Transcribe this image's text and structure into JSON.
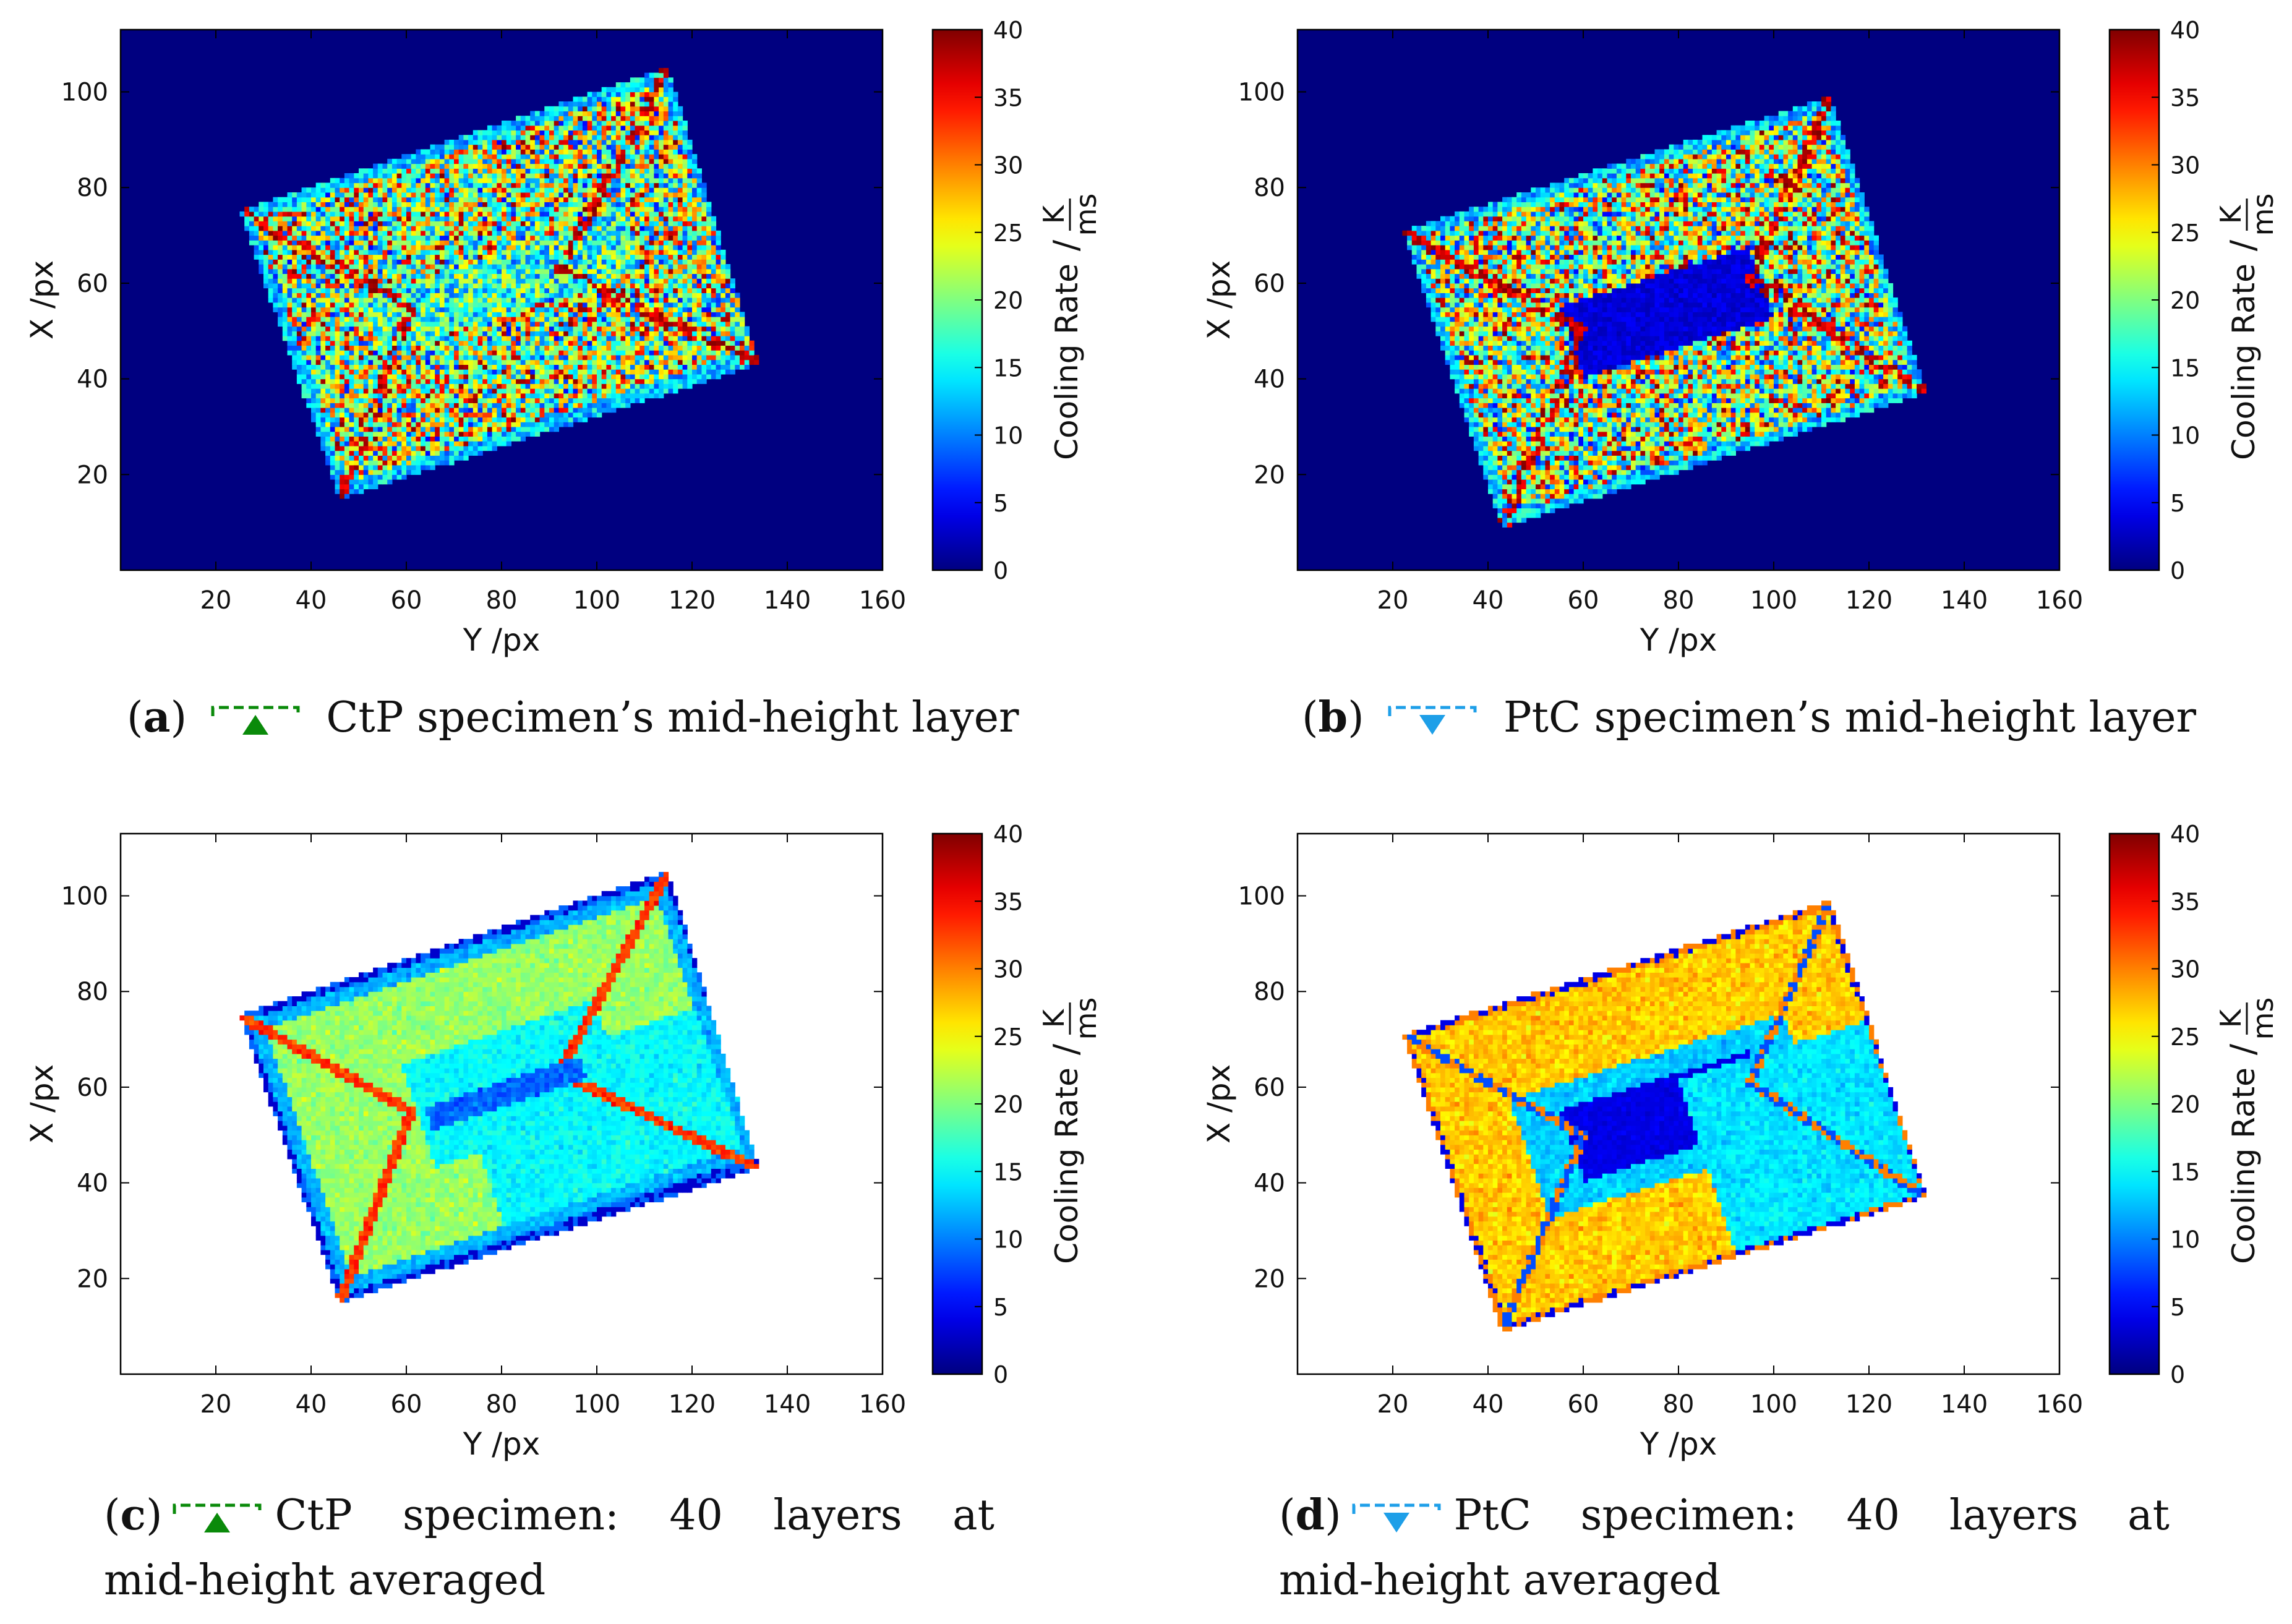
{
  "colors": {
    "ctp_marker": "#0a8a0a",
    "ptc_marker": "#1e9fe8",
    "background_blue": "#00007f"
  },
  "chart_data": [
    {
      "id": "a",
      "type": "heatmap",
      "title": "",
      "xlabel": "Y /px",
      "ylabel": "X /px",
      "xlim": [
        0,
        160
      ],
      "ylim": [
        0,
        113
      ],
      "xticks": [
        20,
        40,
        60,
        80,
        100,
        120,
        140,
        160
      ],
      "yticks": [
        20,
        40,
        60,
        80,
        100
      ],
      "background": "value_0",
      "specimen_corners": [
        [
          25,
          75
        ],
        [
          115,
          105
        ],
        [
          134,
          43
        ],
        [
          46,
          15
        ]
      ],
      "pattern": "noisy single layer, scattered 5-40 K/ms, low-rate central band",
      "colorbar": {
        "label": "Cooling Rate",
        "unit_num": "K",
        "unit_den": "ms",
        "unit_sep": "/",
        "min": 0,
        "max": 40,
        "ticks": [
          0,
          5,
          10,
          15,
          20,
          25,
          30,
          35,
          40
        ]
      }
    },
    {
      "id": "b",
      "type": "heatmap",
      "title": "",
      "xlabel": "Y /px",
      "ylabel": "X /px",
      "xlim": [
        0,
        160
      ],
      "ylim": [
        0,
        113
      ],
      "xticks": [
        20,
        40,
        60,
        80,
        100,
        120,
        140,
        160
      ],
      "yticks": [
        20,
        40,
        60,
        80,
        100
      ],
      "background": "value_0",
      "specimen_corners": [
        [
          22,
          71
        ],
        [
          112,
          99
        ],
        [
          132,
          37
        ],
        [
          43,
          9
        ]
      ],
      "pattern": "noisy single layer, scattered 5-40 K/ms, dark-blue central rectangle",
      "colorbar": {
        "label": "Cooling Rate",
        "unit_num": "K",
        "unit_den": "ms",
        "unit_sep": "/",
        "min": 0,
        "max": 40,
        "ticks": [
          0,
          5,
          10,
          15,
          20,
          25,
          30,
          35,
          40
        ]
      }
    },
    {
      "id": "c",
      "type": "heatmap",
      "title": "",
      "xlabel": "Y /px",
      "ylabel": "X /px",
      "xlim": [
        0,
        160
      ],
      "ylim": [
        0,
        113
      ],
      "xticks": [
        20,
        40,
        60,
        80,
        100,
        120,
        140,
        160
      ],
      "yticks": [
        20,
        40,
        60,
        80,
        100
      ],
      "background": "white",
      "specimen_corners": [
        [
          25,
          75
        ],
        [
          115,
          105
        ],
        [
          134,
          43
        ],
        [
          46,
          15
        ]
      ],
      "pattern": "40-layer average, ~20-25 K/ms field, ~10-15 K/ms border, red diagonal ridges",
      "colorbar": {
        "label": "Cooling Rate",
        "unit_num": "K",
        "unit_den": "ms",
        "unit_sep": "/",
        "min": 0,
        "max": 40,
        "ticks": [
          0,
          5,
          10,
          15,
          20,
          25,
          30,
          35,
          40
        ]
      }
    },
    {
      "id": "d",
      "type": "heatmap",
      "title": "",
      "xlabel": "Y /px",
      "ylabel": "X /px",
      "xlim": [
        0,
        160
      ],
      "ylim": [
        0,
        113
      ],
      "xticks": [
        20,
        40,
        60,
        80,
        100,
        120,
        140,
        160
      ],
      "yticks": [
        20,
        40,
        60,
        80,
        100
      ],
      "background": "white",
      "specimen_corners": [
        [
          22,
          71
        ],
        [
          112,
          99
        ],
        [
          132,
          37
        ],
        [
          43,
          9
        ]
      ],
      "pattern": "40-layer average, ~25-32 K/ms outer field, ~5 K/ms central rectangle",
      "colorbar": {
        "label": "Cooling Rate",
        "unit_num": "K",
        "unit_den": "ms",
        "unit_sep": "/",
        "min": 0,
        "max": 40,
        "ticks": [
          0,
          5,
          10,
          15,
          20,
          25,
          30,
          35,
          40
        ]
      }
    }
  ],
  "captions": {
    "a": {
      "tag_open": "(",
      "tag": "a",
      "tag_close": ")",
      "text": "CtP specimen’s mid-height layer"
    },
    "b": {
      "tag_open": "(",
      "tag": "b",
      "tag_close": ")",
      "text": "PtC specimen’s mid-height layer"
    },
    "c": {
      "tag_open": "(",
      "tag": "c",
      "tag_close": ")",
      "text_line1": "CtP specimen: 40 layers at",
      "text_line2": "mid-height averaged"
    },
    "d": {
      "tag_open": "(",
      "tag": "d",
      "tag_close": ")",
      "text_line1": "PtC specimen: 40 layers at",
      "text_line2": "mid-height averaged"
    }
  }
}
